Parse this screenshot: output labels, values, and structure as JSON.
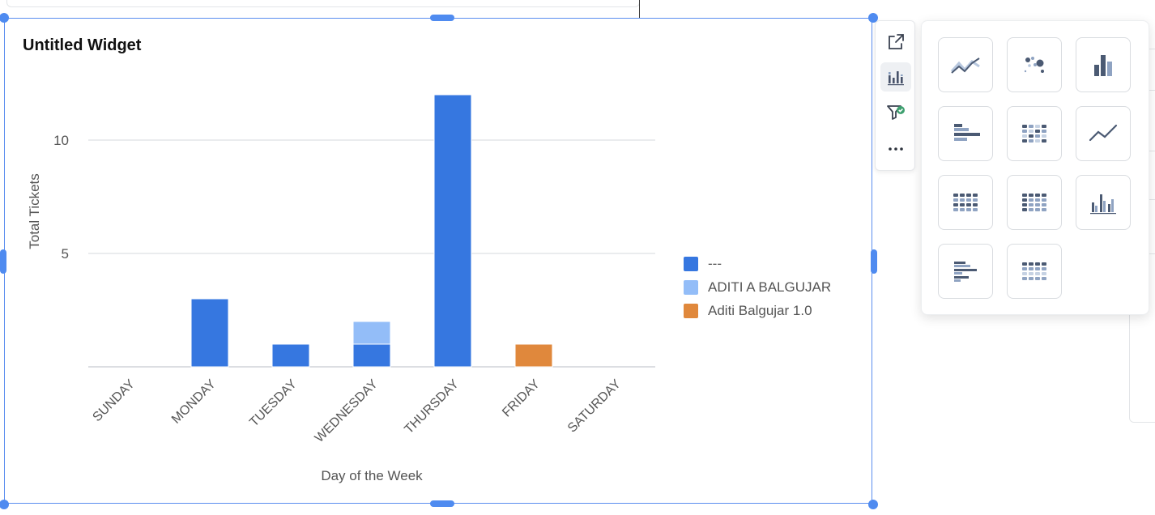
{
  "widget": {
    "title": "Untitled Widget"
  },
  "colors": {
    "series_1": "#3677e0",
    "series_2": "#93bdf8",
    "series_3": "#e0883c",
    "grid": "#d6d9dd",
    "selection": "#4f8bf0"
  },
  "chart_data": {
    "type": "bar",
    "stacked": true,
    "categories": [
      "SUNDAY",
      "MONDAY",
      "TUESDAY",
      "WEDNESDAY",
      "THURSDAY",
      "FRIDAY",
      "SATURDAY"
    ],
    "series": [
      {
        "name": "---",
        "values": [
          0,
          3,
          1,
          1,
          12,
          0,
          0
        ],
        "color": "#3677e0"
      },
      {
        "name": "ADITI A BALGUJAR",
        "values": [
          0,
          0,
          0,
          1,
          0,
          0,
          0
        ],
        "color": "#93bdf8"
      },
      {
        "name": "Aditi Balgujar 1.0",
        "values": [
          0,
          0,
          0,
          0,
          0,
          1,
          0
        ],
        "color": "#e0883c"
      }
    ],
    "xlabel": "Day of the Week",
    "ylabel": "Total Tickets",
    "yticks": [
      5,
      10
    ],
    "ylim": [
      0,
      12.5
    ],
    "grid": true,
    "legend_position": "right"
  },
  "toolbar": {
    "items": [
      {
        "name": "expand-icon"
      },
      {
        "name": "chart-type-icon",
        "active": true
      },
      {
        "name": "filter-icon"
      },
      {
        "name": "more-icon"
      }
    ]
  },
  "chart_types": {
    "items": [
      {
        "icon": "area-line-chart-icon"
      },
      {
        "icon": "scatter-chart-icon"
      },
      {
        "icon": "bar-chart-icon"
      },
      {
        "icon": "horizontal-bar-chart-icon"
      },
      {
        "icon": "heatmap-chart-icon"
      },
      {
        "icon": "line-chart-icon"
      },
      {
        "icon": "table-chart-icon"
      },
      {
        "icon": "pivot-table-icon"
      },
      {
        "icon": "grouped-bar-chart-icon"
      },
      {
        "icon": "grouped-horizontal-bar-icon"
      },
      {
        "icon": "grid-table-icon"
      }
    ]
  }
}
